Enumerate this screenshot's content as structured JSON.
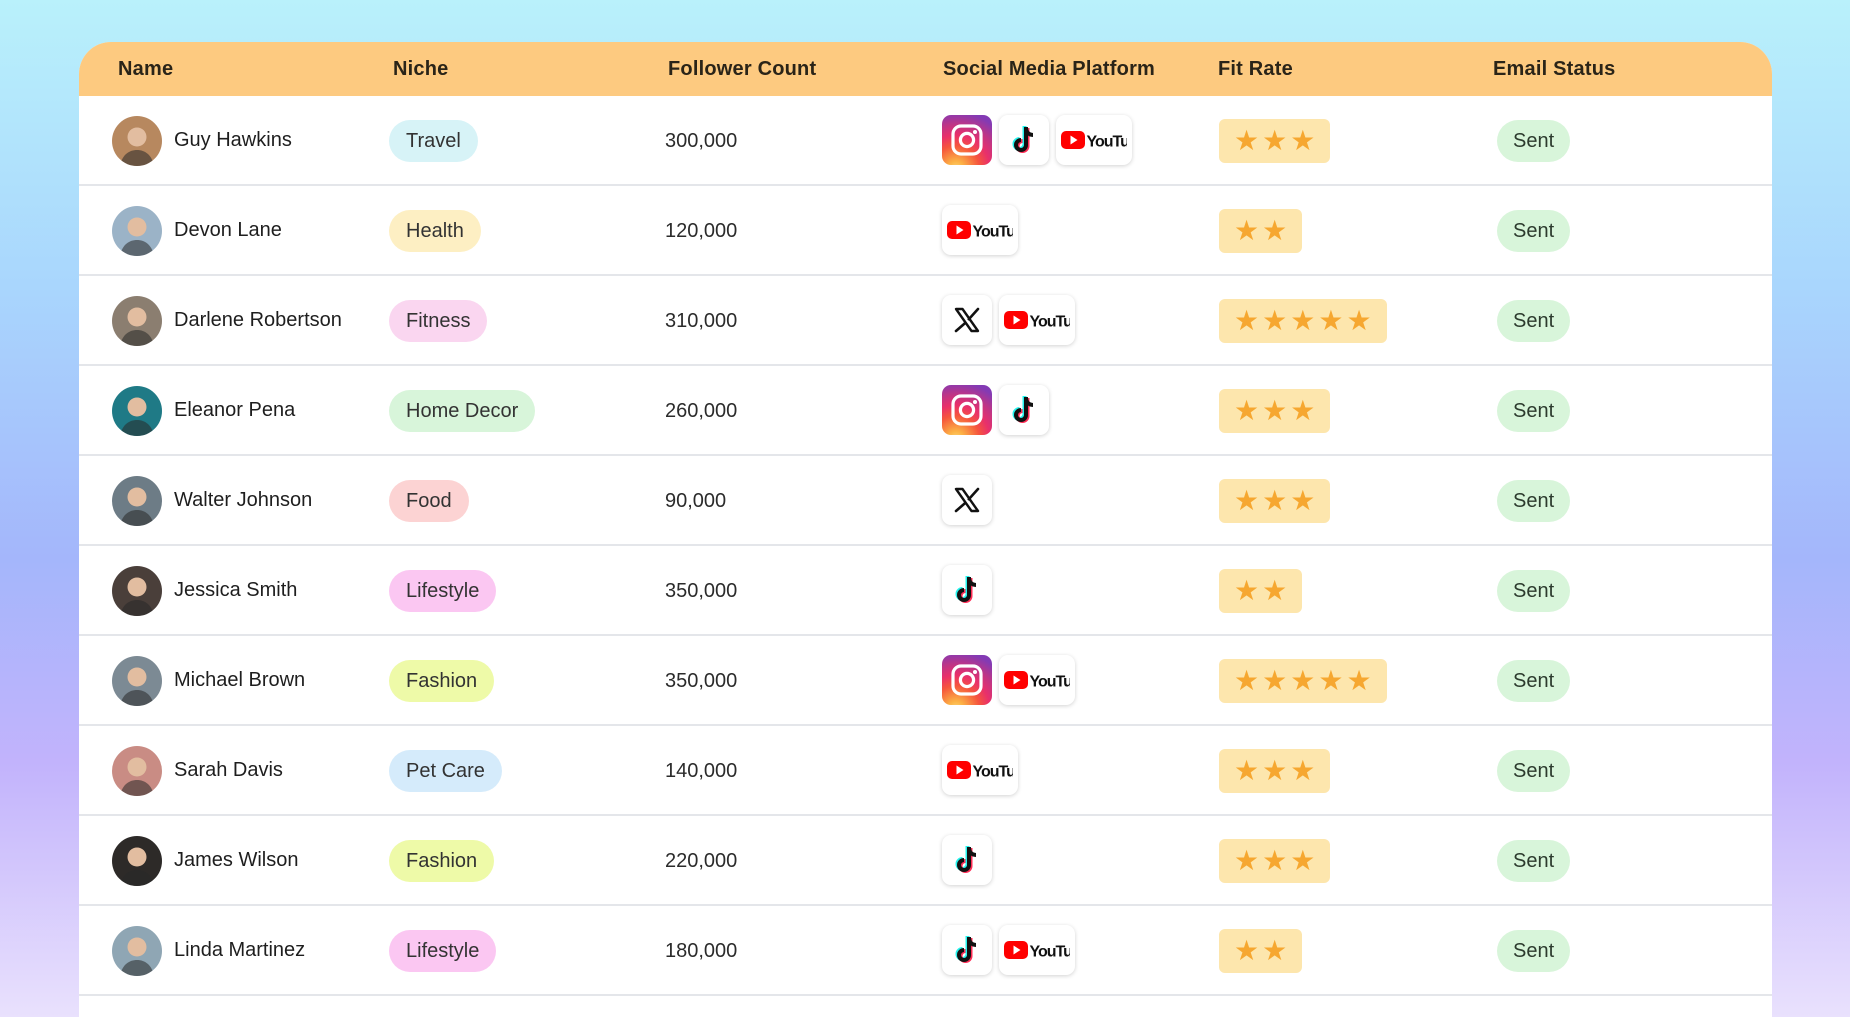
{
  "columns": {
    "name": "Name",
    "niche": "Niche",
    "followers": "Follower Count",
    "platform": "Social Media Platform",
    "fit_rate": "Fit Rate",
    "email_status": "Email Status"
  },
  "colors": {
    "header_bg": "#fdca80",
    "star": "#f6a730",
    "rating_bg": "#fde6ad",
    "status_bg": "#d8f5da"
  },
  "rows": [
    {
      "name": "Guy Hawkins",
      "niche": "Travel",
      "niche_color": "#d7f3f7",
      "followers": "300,000",
      "platforms": [
        "instagram",
        "tiktok",
        "youtube"
      ],
      "rating": 3,
      "status": "Sent",
      "avatar_bg": "#b7885f"
    },
    {
      "name": "Devon Lane",
      "niche": "Health",
      "niche_color": "#fdefc3",
      "followers": "120,000",
      "platforms": [
        "youtube"
      ],
      "rating": 2,
      "status": "Sent",
      "avatar_bg": "#9bb3c7"
    },
    {
      "name": "Darlene Robertson",
      "niche": "Fitness",
      "niche_color": "#fad6f0",
      "followers": "310,000",
      "platforms": [
        "x",
        "youtube"
      ],
      "rating": 5,
      "status": "Sent",
      "avatar_bg": "#8b7e70"
    },
    {
      "name": "Eleanor Pena",
      "niche": "Home Decor",
      "niche_color": "#d8f5da",
      "followers": "260,000",
      "platforms": [
        "instagram",
        "tiktok"
      ],
      "rating": 3,
      "status": "Sent",
      "avatar_bg": "#1f7a86"
    },
    {
      "name": "Walter Johnson",
      "niche": "Food",
      "niche_color": "#fcd3d3",
      "followers": "90,000",
      "platforms": [
        "x"
      ],
      "rating": 3,
      "status": "Sent",
      "avatar_bg": "#6d7c86"
    },
    {
      "name": "Jessica Smith",
      "niche": "Lifestyle",
      "niche_color": "#fbc7f2",
      "followers": "350,000",
      "platforms": [
        "tiktok"
      ],
      "rating": 2,
      "status": "Sent",
      "avatar_bg": "#4a3f3a"
    },
    {
      "name": "Michael Brown",
      "niche": "Fashion",
      "niche_color": "#eefaa8",
      "followers": "350,000",
      "platforms": [
        "instagram",
        "youtube"
      ],
      "rating": 5,
      "status": "Sent",
      "avatar_bg": "#7c8a94"
    },
    {
      "name": "Sarah Davis",
      "niche": "Pet Care",
      "niche_color": "#d5ebfb",
      "followers": "140,000",
      "platforms": [
        "youtube"
      ],
      "rating": 3,
      "status": "Sent",
      "avatar_bg": "#c98c84"
    },
    {
      "name": "James Wilson",
      "niche": "Fashion",
      "niche_color": "#eefaa8",
      "followers": "220,000",
      "platforms": [
        "tiktok"
      ],
      "rating": 3,
      "status": "Sent",
      "avatar_bg": "#2d2a28"
    },
    {
      "name": "Linda Martinez",
      "niche": "Lifestyle",
      "niche_color": "#fbc7f2",
      "followers": "180,000",
      "platforms": [
        "tiktok",
        "youtube"
      ],
      "rating": 2,
      "status": "Sent",
      "avatar_bg": "#8fa6b4"
    }
  ]
}
